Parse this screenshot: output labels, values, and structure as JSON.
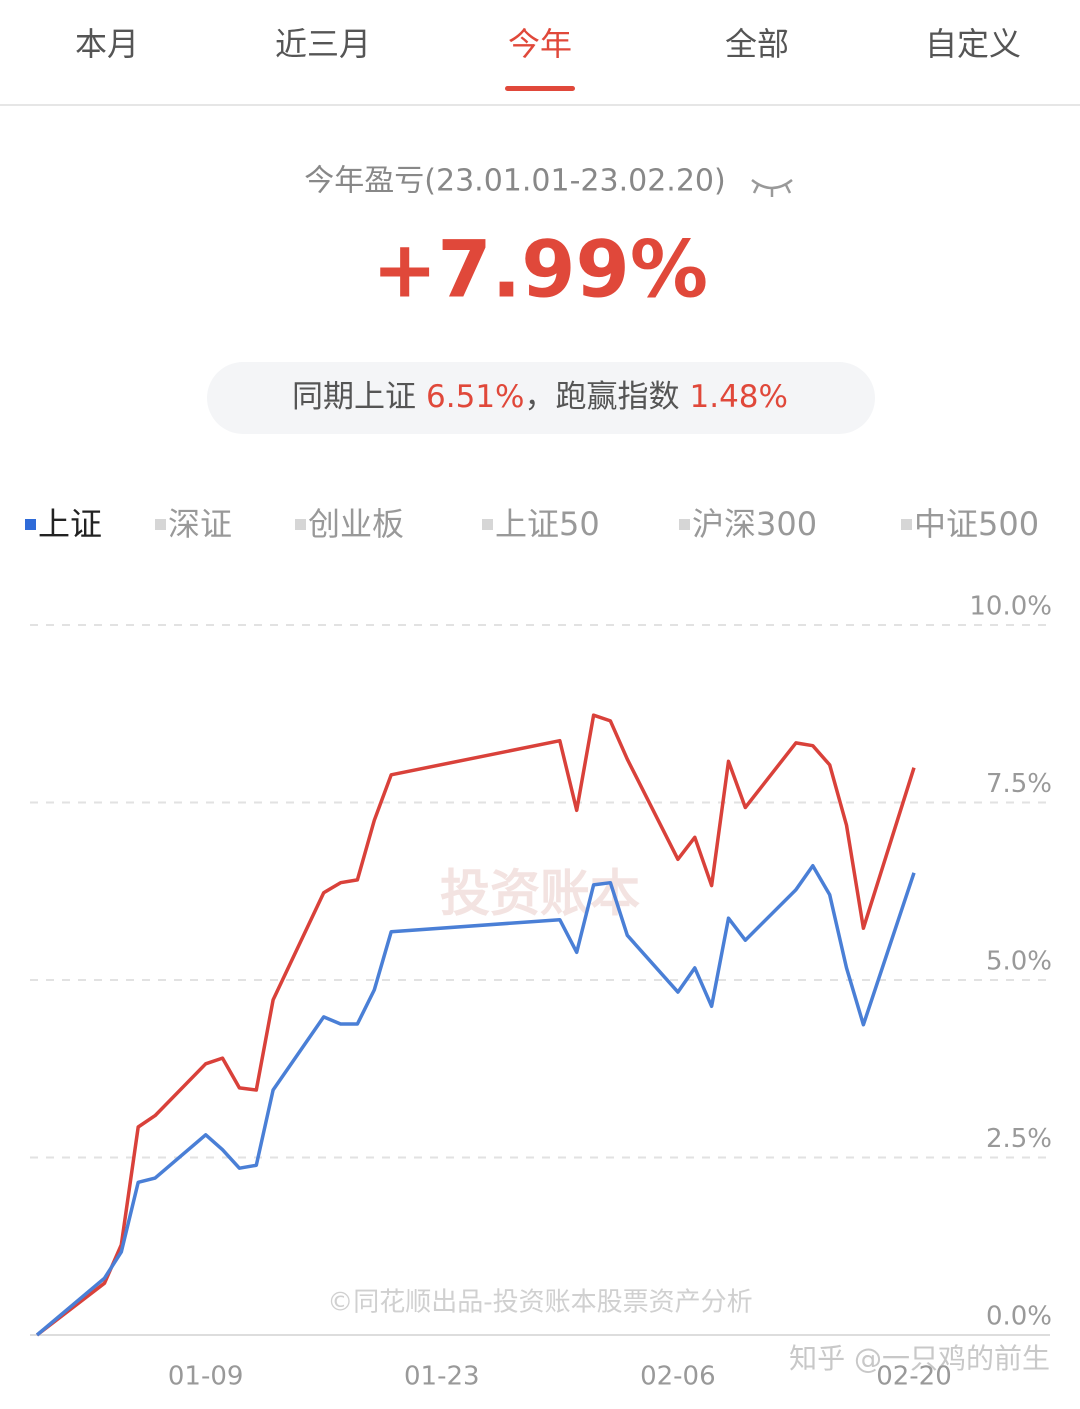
{
  "tabs": [
    "本月",
    "近三月",
    "今年",
    "全部",
    "自定义"
  ],
  "selected_tab": 2,
  "summary": {
    "label": "今年盈亏(23.01.01-23.02.20)",
    "return": "+7.99%",
    "compare_prefix": "同期上证",
    "index_return": "6.51%",
    "compare_middle": "，跑赢指数",
    "excess_return": "1.48%"
  },
  "indices": [
    "上证",
    "深证",
    "创业板",
    "上证50",
    "沪深300",
    "中证500"
  ],
  "selected_index": 0,
  "chart_data": {
    "type": "line",
    "x": [
      "12-30",
      "01-03",
      "01-04",
      "01-05",
      "01-06",
      "01-09",
      "01-10",
      "01-11",
      "01-12",
      "01-13",
      "01-16",
      "01-17",
      "01-18",
      "01-19",
      "01-20",
      "01-30",
      "01-31",
      "02-01",
      "02-02",
      "02-03",
      "02-06",
      "02-07",
      "02-08",
      "02-09",
      "02-10",
      "02-13",
      "02-14",
      "02-15",
      "02-16",
      "02-17",
      "02-20"
    ],
    "series": [
      {
        "color": "#d9413a",
        "values": [
          0,
          0.73,
          1.27,
          2.93,
          3.09,
          3.82,
          3.9,
          3.48,
          3.45,
          4.72,
          6.23,
          6.37,
          6.41,
          7.25,
          7.89,
          8.37,
          7.39,
          8.73,
          8.65,
          8.11,
          6.7,
          7.01,
          6.33,
          8.08,
          7.43,
          8.34,
          8.3,
          8.03,
          7.18,
          5.73,
          7.99
        ]
      },
      {
        "color": "#4a7fd6",
        "values": [
          0,
          0.8,
          1.17,
          2.15,
          2.21,
          2.82,
          2.61,
          2.35,
          2.39,
          3.45,
          4.48,
          4.38,
          4.38,
          4.86,
          5.68,
          5.85,
          5.39,
          6.34,
          6.37,
          5.63,
          4.83,
          5.17,
          4.63,
          5.87,
          5.56,
          6.27,
          6.61,
          6.2,
          5.17,
          4.37,
          6.51
        ]
      }
    ],
    "xlim": [
      "12-30",
      "02-20"
    ],
    "xticks": [
      "01-09",
      "01-23",
      "02-06",
      "02-20"
    ],
    "ylim": [
      0,
      10
    ],
    "yticks": [
      {
        "value": 0,
        "label": "0.0%"
      },
      {
        "value": 2.5,
        "label": "2.5%"
      },
      {
        "value": 5,
        "label": "5.0%"
      },
      {
        "value": 7.5,
        "label": "7.5%"
      },
      {
        "value": 10,
        "label": "10.0%"
      }
    ],
    "grid": true
  },
  "watermarks": {
    "brand": "投资账本",
    "copyright": "©同花顺出品-投资账本股票资产分析",
    "site": "知乎 @一只鸡的前生"
  }
}
